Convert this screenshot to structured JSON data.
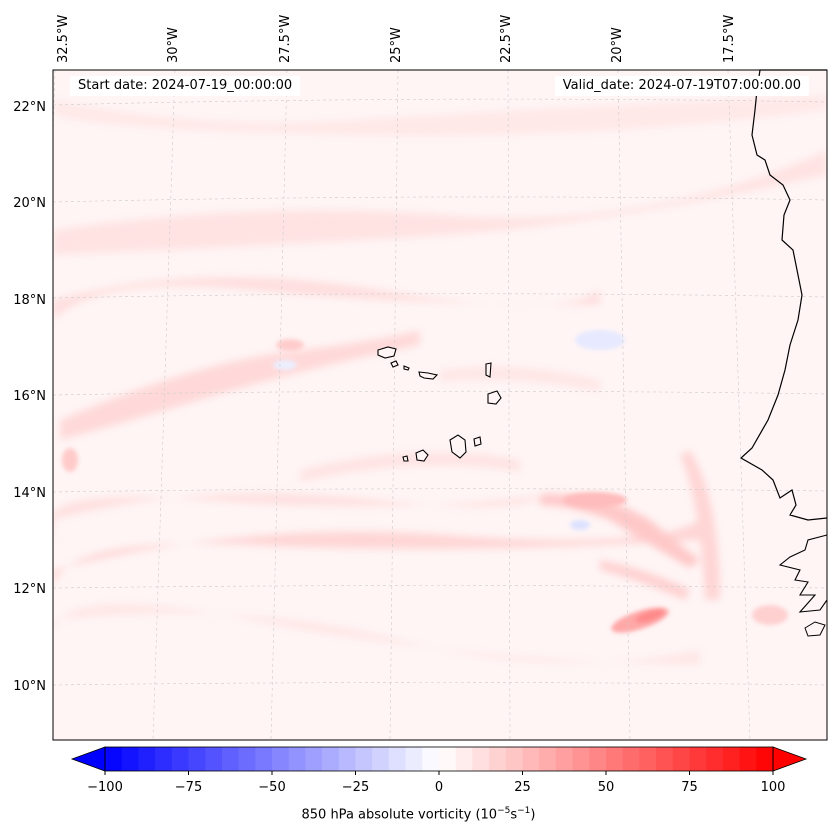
{
  "header": {
    "start_date": "Start date: 2024-07-19_00:00:00",
    "valid_date": "Valid_date: 2024-07-19T07:00:00.00"
  },
  "map": {
    "lon_labels": [
      "32.5°W",
      "30°W",
      "27.5°W",
      "25°W",
      "22.5°W",
      "20°W",
      "17.5°W"
    ],
    "lat_labels": [
      "22°N",
      "20°N",
      "18°N",
      "16°N",
      "14°N",
      "12°N",
      "10°N"
    ],
    "lon_values": [
      -32.5,
      -30,
      -27.5,
      -25,
      -22.5,
      -20,
      -17.5
    ],
    "lat_values": [
      22,
      20,
      18,
      16,
      14,
      12,
      10
    ],
    "field_name": "850 hPa absolute vorticity"
  },
  "colorbar": {
    "ticks": [
      "−100",
      "−75",
      "−50",
      "−25",
      "0",
      "25",
      "50",
      "75",
      "100"
    ],
    "tick_values": [
      -100,
      -75,
      -50,
      -25,
      0,
      25,
      50,
      75,
      100
    ],
    "range": [
      -100,
      100
    ],
    "label_main": "850 hPa absolute vorticity (10",
    "exp1": "−5",
    "label_mid": "s",
    "exp2": "−1",
    "label_end": ")",
    "neg_color": "#0000ff",
    "zero_color": "#ffffff",
    "pos_color": "#ff0000"
  }
}
